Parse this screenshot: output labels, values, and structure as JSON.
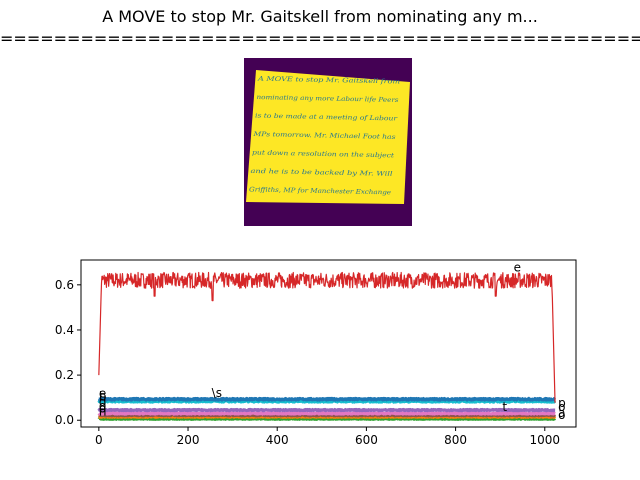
{
  "title": {
    "line1": "A MOVE to stop Mr. Gaitskell from nominating any m...",
    "line2": "================================================================"
  },
  "image_panel": {
    "background_color": "#440154",
    "paper_color": "#fde725",
    "ink_color": "#2a788e",
    "handwriting_lines": [
      "A MOVE to stop Mr. Gaitskell from",
      "nominating any more Labour life Peers",
      "is to be made at a meeting of Labour",
      "MPs tomorrow. Mr. Michael Foot has",
      "put down a resolution on the subject",
      "and he is to be backed by Mr. Will",
      "Griffiths, MP for Manchester Exchange"
    ]
  },
  "chart_data": {
    "type": "line",
    "xlim": [
      -40,
      1070
    ],
    "ylim": [
      -0.03,
      0.71
    ],
    "x_ticks": [
      0,
      200,
      400,
      600,
      800,
      1000
    ],
    "y_ticks": [
      0.0,
      0.2,
      0.4,
      0.6
    ],
    "x_tick_labels": [
      "0",
      "200",
      "400",
      "600",
      "800",
      "1000"
    ],
    "y_tick_labels": [
      "0.0",
      "0.2",
      "0.4",
      "0.6"
    ],
    "length": 1024,
    "grid": false,
    "series": [
      {
        "color": "#d62728",
        "start": 0.2,
        "level": 0.62,
        "noise": 0.035,
        "end": 0.0,
        "dips": [
          [
            125,
            0.55
          ],
          [
            255,
            0.53
          ],
          [
            890,
            0.55
          ]
        ],
        "width": 1.2
      },
      {
        "color": "#1f77b4",
        "level": 0.093,
        "noise": 0.004,
        "width": 3
      },
      {
        "color": "#17becf",
        "level": 0.084,
        "noise": 0.004,
        "width": 3
      },
      {
        "color": "#9467bd",
        "level": 0.045,
        "noise": 0.003,
        "width": 3
      },
      {
        "color": "#e377c2",
        "level": 0.03,
        "noise": 0.003,
        "width": 3
      },
      {
        "color": "#8c564b",
        "level": 0.022,
        "noise": 0.003,
        "width": 3
      },
      {
        "color": "#ff7f0e",
        "level": 0.015,
        "noise": 0.002,
        "width": 3
      },
      {
        "color": "#2ca02c",
        "level": 0.006,
        "noise": 0.002,
        "width": 3
      }
    ],
    "annotations": [
      {
        "text": "e",
        "x": 0,
        "y": 0.1
      },
      {
        "text": "\\s",
        "x": 253,
        "y": 0.102
      },
      {
        "text": "t",
        "x": 905,
        "y": 0.04
      },
      {
        "text": "e",
        "x": 930,
        "y": 0.66
      },
      {
        "text": "b",
        "x": 0,
        "y": 0.088
      },
      {
        "text": "d",
        "x": 0,
        "y": 0.063
      },
      {
        "text": "o",
        "x": 0,
        "y": 0.045
      },
      {
        "text": "o",
        "x": 0,
        "y": 0.035
      },
      {
        "text": "n",
        "x": 0,
        "y": 0.02
      },
      {
        "text": "p",
        "x": 1030,
        "y": 0.058
      },
      {
        "text": "o",
        "x": 1030,
        "y": 0.04
      },
      {
        "text": "a",
        "x": 1030,
        "y": 0.015
      },
      {
        "text": "o",
        "x": 1030,
        "y": 0.005
      }
    ]
  }
}
